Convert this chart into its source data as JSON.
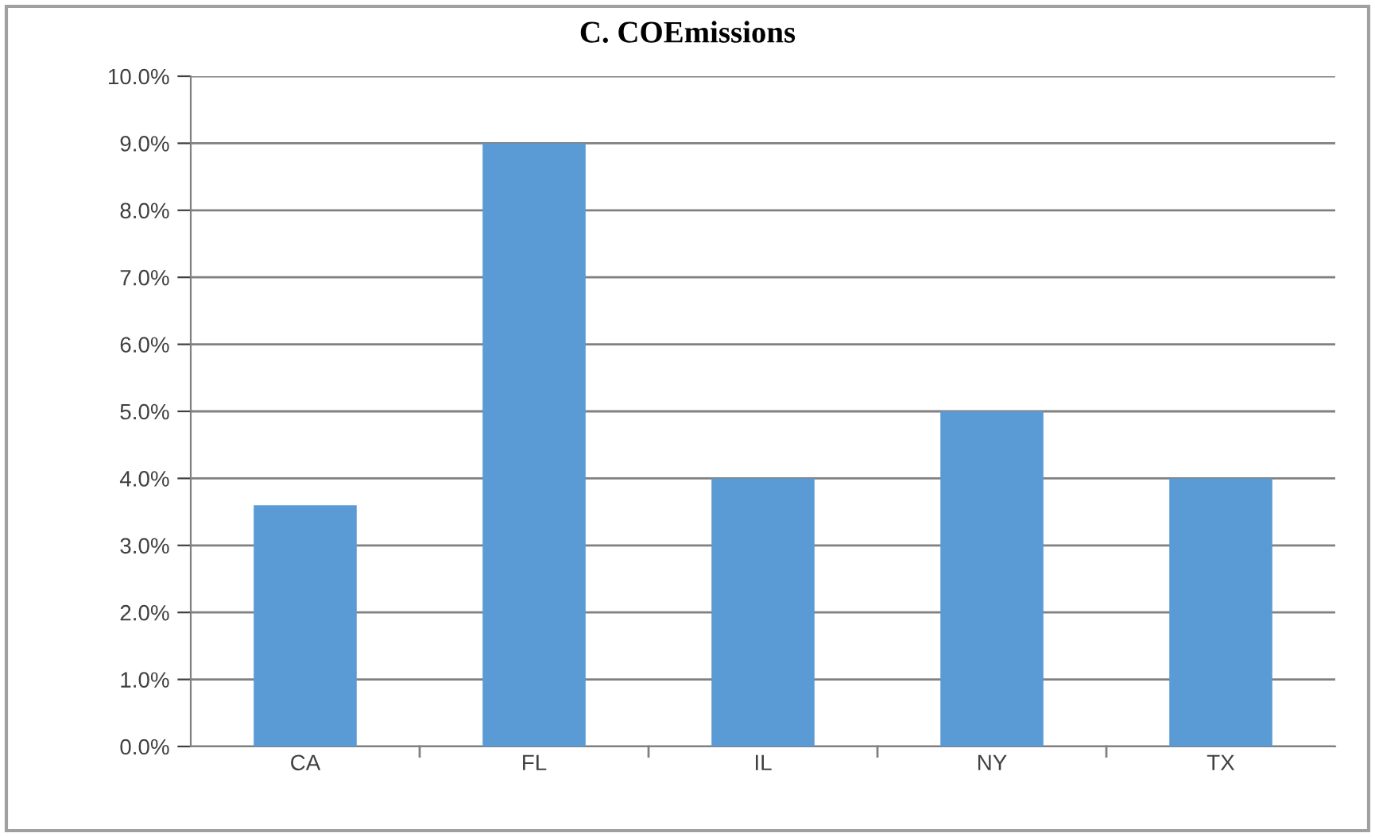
{
  "chart_data": {
    "type": "bar",
    "title": "C. COEmissions",
    "categories": [
      "CA",
      "FL",
      "IL",
      "NY",
      "TX"
    ],
    "values": [
      3.6,
      9.0,
      4.0,
      5.0,
      4.0
    ],
    "color": "#5b9bd5",
    "ylim": [
      0,
      10
    ],
    "yticks": [
      {
        "value": 0,
        "label": "0.0%"
      },
      {
        "value": 1,
        "label": "1.0%"
      },
      {
        "value": 2,
        "label": "2.0%"
      },
      {
        "value": 3,
        "label": "3.0%"
      },
      {
        "value": 4,
        "label": "4.0%"
      },
      {
        "value": 5,
        "label": "5.0%"
      },
      {
        "value": 6,
        "label": "6.0%"
      },
      {
        "value": 7,
        "label": "7.0%"
      },
      {
        "value": 8,
        "label": "8.0%"
      },
      {
        "value": 9,
        "label": "9.0%"
      },
      {
        "value": 10,
        "label": "10.0%"
      }
    ],
    "grid": "y",
    "legend": false
  }
}
